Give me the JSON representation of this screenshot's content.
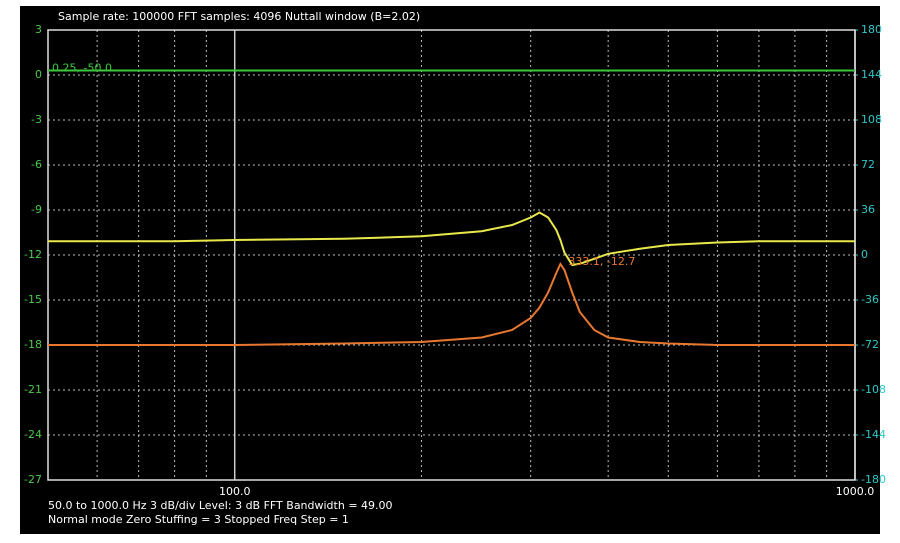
{
  "chart_data": {
    "type": "line",
    "title": "Sample rate: 100000    FFT samples: 4096    Nuttall window (B=2.02)",
    "notes": [
      "50.0 to 1000.0 Hz  3 dB/div  Level: 3 dB   FFT Bandwidth = 49.00",
      "Normal mode Zero Stuffing = 3  Stopped   Freq Step = 1"
    ],
    "annotations": [
      {
        "text": "0.25, -50.0",
        "x": 50,
        "y": 0.3,
        "color": "#3cc83c"
      },
      {
        "text": "333.1, -12.7",
        "x": 340,
        "y": -12.6,
        "color": "#e87830"
      }
    ],
    "x": [
      50,
      60,
      70,
      80,
      100,
      150,
      200,
      250,
      280,
      300,
      310,
      320,
      330,
      335,
      340,
      350,
      360,
      380,
      400,
      450,
      500,
      600,
      700,
      800,
      1000
    ],
    "xlog": true,
    "xlim": [
      50,
      1000
    ],
    "xticks": [
      {
        "value": 100,
        "label": "100.0"
      },
      {
        "value": 1000,
        "label": "1000.0"
      }
    ],
    "x_minor_ticks": [
      60,
      70,
      80,
      90,
      200,
      300,
      400,
      500,
      600,
      700,
      800,
      900
    ],
    "ylim": [
      -27,
      3
    ],
    "yticks": [
      3,
      0,
      -3,
      -6,
      -9,
      -12,
      -15,
      -18,
      -21,
      -24,
      -27
    ],
    "y2lim": [
      -180,
      180
    ],
    "y2ticks": [
      180,
      144,
      108,
      72,
      36,
      0,
      -36,
      -72,
      -108,
      -144,
      -180
    ],
    "grid": true,
    "series": [
      {
        "color": "#3cc83c",
        "values": [
          0.3,
          0.3,
          0.3,
          0.3,
          0.3,
          0.3,
          0.3,
          0.3,
          0.3,
          0.3,
          0.3,
          0.3,
          0.3,
          0.3,
          0.3,
          0.3,
          0.3,
          0.3,
          0.3,
          0.3,
          0.3,
          0.3,
          0.3,
          0.3,
          0.3
        ]
      },
      {
        "color": "#e8e84a",
        "axis": "y2",
        "values": [
          11,
          11,
          11,
          11,
          12,
          13,
          15,
          19,
          24,
          30,
          34,
          30,
          20,
          12,
          2,
          -8,
          -7,
          -3,
          1,
          5,
          8,
          10,
          11,
          11,
          11
        ]
      },
      {
        "color": "#e87830",
        "values": [
          -18,
          -18,
          -18,
          -18,
          -18,
          -17.9,
          -17.8,
          -17.5,
          -17,
          -16.2,
          -15.5,
          -14.5,
          -13.2,
          -12.6,
          -13,
          -14.5,
          -15.8,
          -17,
          -17.5,
          -17.8,
          -17.9,
          -18,
          -18,
          -18,
          -18
        ]
      }
    ],
    "left_axis_color": "#4cc84c",
    "right_axis_color": "#30c8c8"
  }
}
